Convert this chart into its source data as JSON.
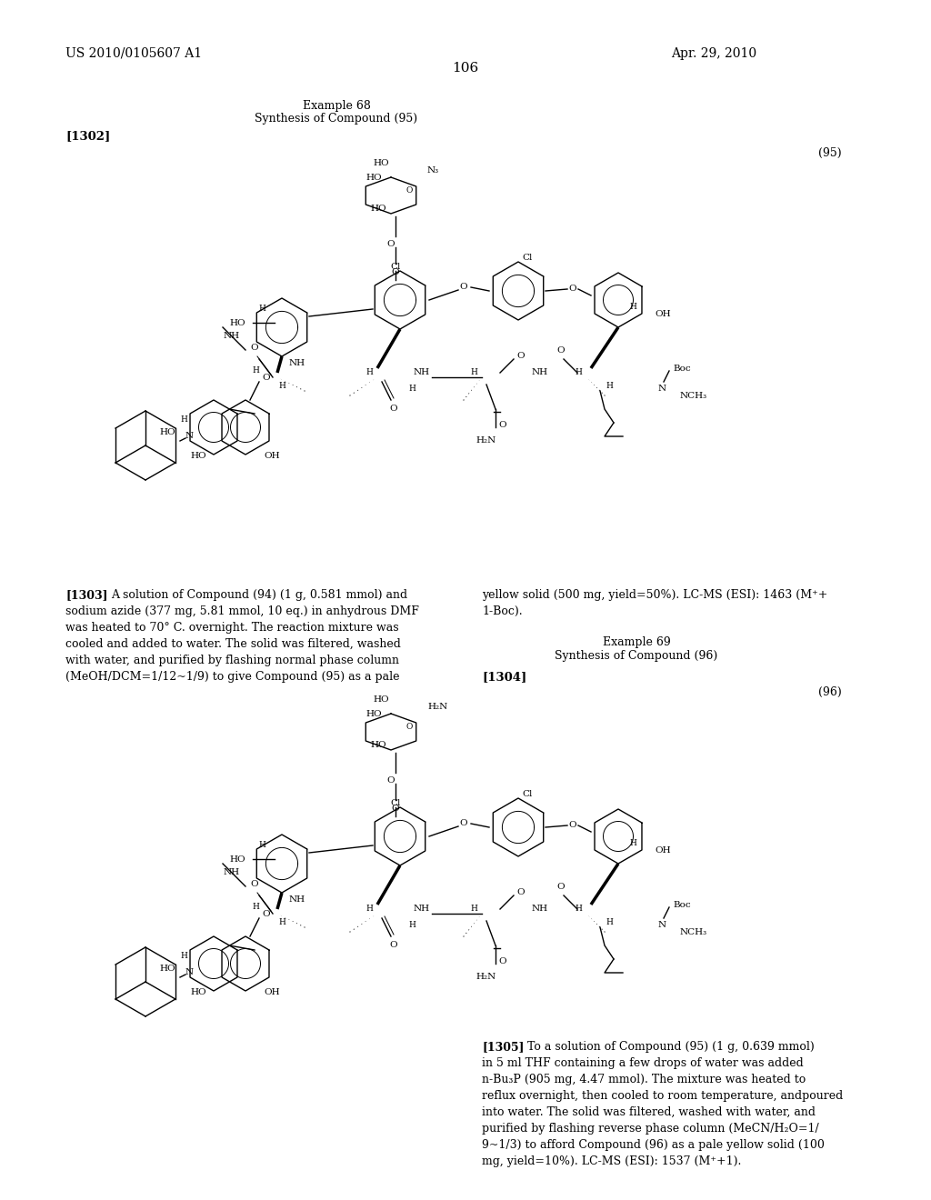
{
  "background_color": "#ffffff",
  "header_left": "US 2010/0105607 A1",
  "header_right": "Apr. 29, 2010",
  "page_number": "106",
  "example68_line1": "Example 68",
  "example68_line2": "Synthesis of Compound (95)",
  "tag_1302": "[1302]",
  "compound95_label": "(95)",
  "para_1303_left": "[1303] A solution of Compound (94) (1 g, 0.581 mmol) and\nsodium azide (377 mg, 5.81 mmol, 10 eq.) in anhydrous DMF\nwas heated to 70° C. overnight. The reaction mixture was\ncooled and added to water. The solid was filtered, washed\nwith water, and purified by flashing normal phase column\n(MeOH/DCM=1/12~1/9) to give Compound (95) as a pale",
  "para_1303_right": "yellow solid (500 mg, yield=50%). LC-MS (ESI): 1463 (M⁺+\n1-Boc).",
  "example69_line1": "Example 69",
  "example69_line2": "Synthesis of Compound (96)",
  "tag_1304": "[1304]",
  "compound96_label": "(96)",
  "para_1305": "[1305] To a solution of Compound (95) (1 g, 0.639 mmol)\nin 5 ml THF containing a few drops of water was added\nn-Bu₃P (905 mg, 4.47 mmol). The mixture was heated to\nreflux overnight, then cooled to room temperature, andpoured\ninto water. The solid was filtered, washed with water, and\npurified by flashing reverse phase column (MeCN/H₂O=1/\n9~1/3) to afford Compound (96) as a pale yellow solid (100\nmg, yield=10%). LC-MS (ESI): 1537 (M⁺+1)."
}
